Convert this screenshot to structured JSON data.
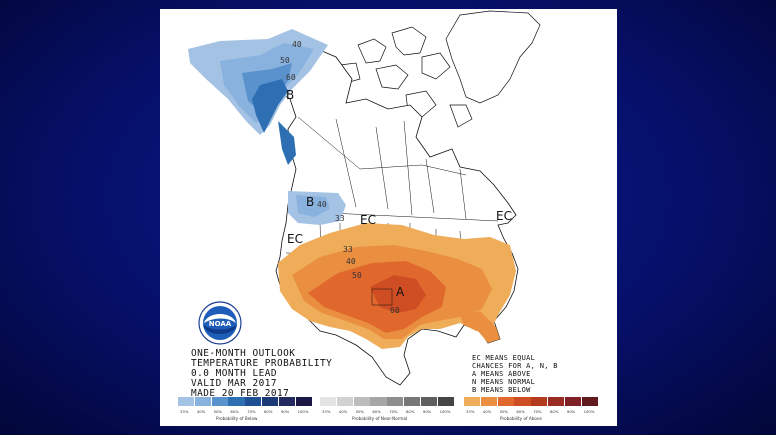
{
  "title_lines": [
    "ONE-MONTH OUTLOOK",
    "TEMPERATURE PROBABILITY",
    "0.0 MONTH LEAD",
    "VALID MAR 2017",
    "MADE 20 FEB 2017"
  ],
  "legend_lines": [
    "EC MEANS EQUAL",
    "CHANCES FOR A, N, B",
    "A MEANS ABOVE",
    "N MEANS NORMAL",
    "B MEANS BELOW"
  ],
  "logo_text": "NOAA",
  "region_labels": {
    "b_alaska": "B",
    "b_northwest": "B",
    "a_south": "A",
    "ec_central": "EC",
    "ec_west": "EC",
    "ec_east": "EC"
  },
  "contour_labels": {
    "ak_40": "40",
    "ak_50": "50",
    "ak_60": "60",
    "nw_40": "40",
    "nw_33": "33",
    "s_33": "33",
    "s_40": "40",
    "s_50": "50",
    "s_60": "60"
  },
  "scales": {
    "below": {
      "caption": "Probability of Below",
      "ticks": [
        "33%",
        "40%",
        "50%",
        "60%",
        "70%",
        "80%",
        "90%",
        "100%"
      ],
      "colors": [
        "#a4c2e3",
        "#8ab2de",
        "#5a92cd",
        "#2e6fb3",
        "#1e4f94",
        "#1d3a78",
        "#23285e",
        "#1b1845"
      ]
    },
    "normal": {
      "caption": "Probability of Near-Normal",
      "ticks": [
        "33%",
        "40%",
        "50%",
        "60%",
        "70%",
        "80%",
        "90%",
        "100%"
      ],
      "colors": [
        "#e4e4e4",
        "#d2d2d2",
        "#bcbcbc",
        "#a6a6a6",
        "#8e8e8e",
        "#777777",
        "#5f5f5f",
        "#454545"
      ]
    },
    "above": {
      "caption": "Probability of Above",
      "ticks": [
        "33%",
        "40%",
        "50%",
        "60%",
        "70%",
        "80%",
        "90%",
        "100%"
      ],
      "colors": [
        "#efad5a",
        "#ea8e40",
        "#e0682d",
        "#cf4d22",
        "#b43a1d",
        "#9a2b23",
        "#7e2026",
        "#601a1e"
      ]
    }
  },
  "colors": {
    "below_33": "#a4c2e3",
    "below_40": "#8ab2de",
    "below_50": "#5a92cd",
    "below_60": "#2e6fb3",
    "above_33": "#efad5a",
    "above_40": "#ea8e40",
    "above_50": "#e0682d",
    "above_60": "#cf4d22"
  }
}
